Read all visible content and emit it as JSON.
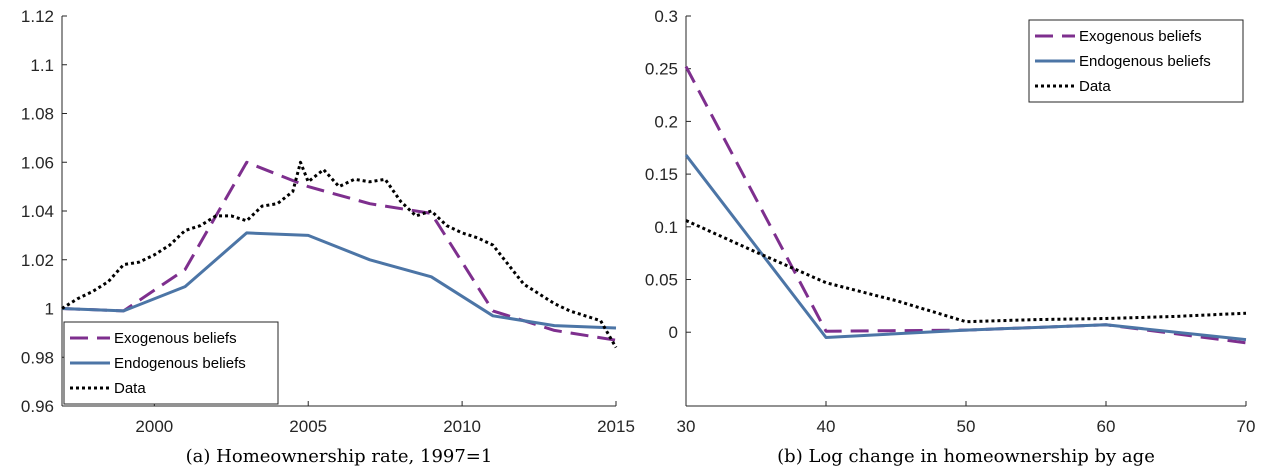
{
  "chart_data": [
    {
      "type": "line",
      "caption": "(a) Homeownership rate, 1997=1",
      "xlim": [
        1997,
        2015
      ],
      "ylim": [
        0.96,
        1.12
      ],
      "xticks": [
        "2000",
        "2005",
        "2010",
        "2015"
      ],
      "xtick_values": [
        2000,
        2005,
        2010,
        2015
      ],
      "yticks": [
        "0.96",
        "0.98",
        "1",
        "1.02",
        "1.04",
        "1.06",
        "1.08",
        "1.1",
        "1.12"
      ],
      "ytick_values": [
        0.96,
        0.98,
        1.0,
        1.02,
        1.04,
        1.06,
        1.08,
        1.1,
        1.12
      ],
      "grid": false,
      "legend_position": "bottom-left",
      "series": [
        {
          "name": "Exogenous beliefs",
          "color": "#7E2F8E",
          "style": "dashed",
          "x": [
            1997,
            1999,
            2001,
            2003,
            2005,
            2007,
            2009,
            2011,
            2013,
            2015
          ],
          "y": [
            1.0,
            0.999,
            1.016,
            1.06,
            1.05,
            1.043,
            1.039,
            0.999,
            0.991,
            0.987
          ]
        },
        {
          "name": "Endogenous beliefs",
          "color": "#4C75A6",
          "style": "solid",
          "x": [
            1997,
            1999,
            2001,
            2003,
            2005,
            2007,
            2009,
            2011,
            2013,
            2015
          ],
          "y": [
            1.0,
            0.999,
            1.009,
            1.031,
            1.03,
            1.02,
            1.013,
            0.997,
            0.993,
            0.992
          ]
        },
        {
          "name": "Data",
          "color": "#000000",
          "style": "dotted",
          "x": [
            1997,
            1997.5,
            1998,
            1998.5,
            1999,
            1999.5,
            2000,
            2000.5,
            2001,
            2001.5,
            2002,
            2002.5,
            2003,
            2003.5,
            2004,
            2004.5,
            2004.75,
            2005,
            2005.5,
            2006,
            2006.5,
            2007,
            2007.5,
            2008,
            2008.5,
            2009,
            2009.5,
            2010,
            2010.5,
            2011,
            2011.5,
            2012,
            2012.5,
            2013,
            2013.5,
            2014,
            2014.5,
            2015
          ],
          "y": [
            1.0,
            1.004,
            1.007,
            1.011,
            1.018,
            1.019,
            1.022,
            1.026,
            1.032,
            1.034,
            1.038,
            1.038,
            1.036,
            1.042,
            1.043,
            1.048,
            1.06,
            1.052,
            1.057,
            1.05,
            1.053,
            1.052,
            1.053,
            1.044,
            1.038,
            1.04,
            1.034,
            1.031,
            1.029,
            1.026,
            1.018,
            1.01,
            1.006,
            1.002,
            0.999,
            0.997,
            0.995,
            0.984
          ]
        }
      ]
    },
    {
      "type": "line",
      "caption": "(b) Log change in homeownership by age",
      "xlim": [
        30,
        70
      ],
      "ylim": [
        -0.07,
        0.3
      ],
      "xticks": [
        "30",
        "40",
        "50",
        "60",
        "70"
      ],
      "xtick_values": [
        30,
        40,
        50,
        60,
        70
      ],
      "yticks": [
        "0",
        "0.05",
        "0.1",
        "0.15",
        "0.2",
        "0.25",
        "0.3"
      ],
      "ytick_values": [
        0,
        0.05,
        0.1,
        0.15,
        0.2,
        0.25,
        0.3
      ],
      "grid": false,
      "legend_position": "top-right",
      "series": [
        {
          "name": "Exogenous beliefs",
          "color": "#7E2F8E",
          "style": "dashed",
          "x": [
            30,
            40,
            50,
            60,
            70
          ],
          "y": [
            0.252,
            0.001,
            0.002,
            0.007,
            -0.01
          ]
        },
        {
          "name": "Endogenous beliefs",
          "color": "#4C75A6",
          "style": "solid",
          "x": [
            30,
            40,
            50,
            60,
            70
          ],
          "y": [
            0.168,
            -0.005,
            0.002,
            0.007,
            -0.007
          ]
        },
        {
          "name": "Data",
          "color": "#000000",
          "style": "dotted",
          "x": [
            30,
            35,
            40,
            45,
            50,
            55,
            60,
            65,
            70
          ],
          "y": [
            0.106,
            0.076,
            0.047,
            0.03,
            0.01,
            0.012,
            0.013,
            0.015,
            0.018
          ]
        }
      ]
    }
  ]
}
